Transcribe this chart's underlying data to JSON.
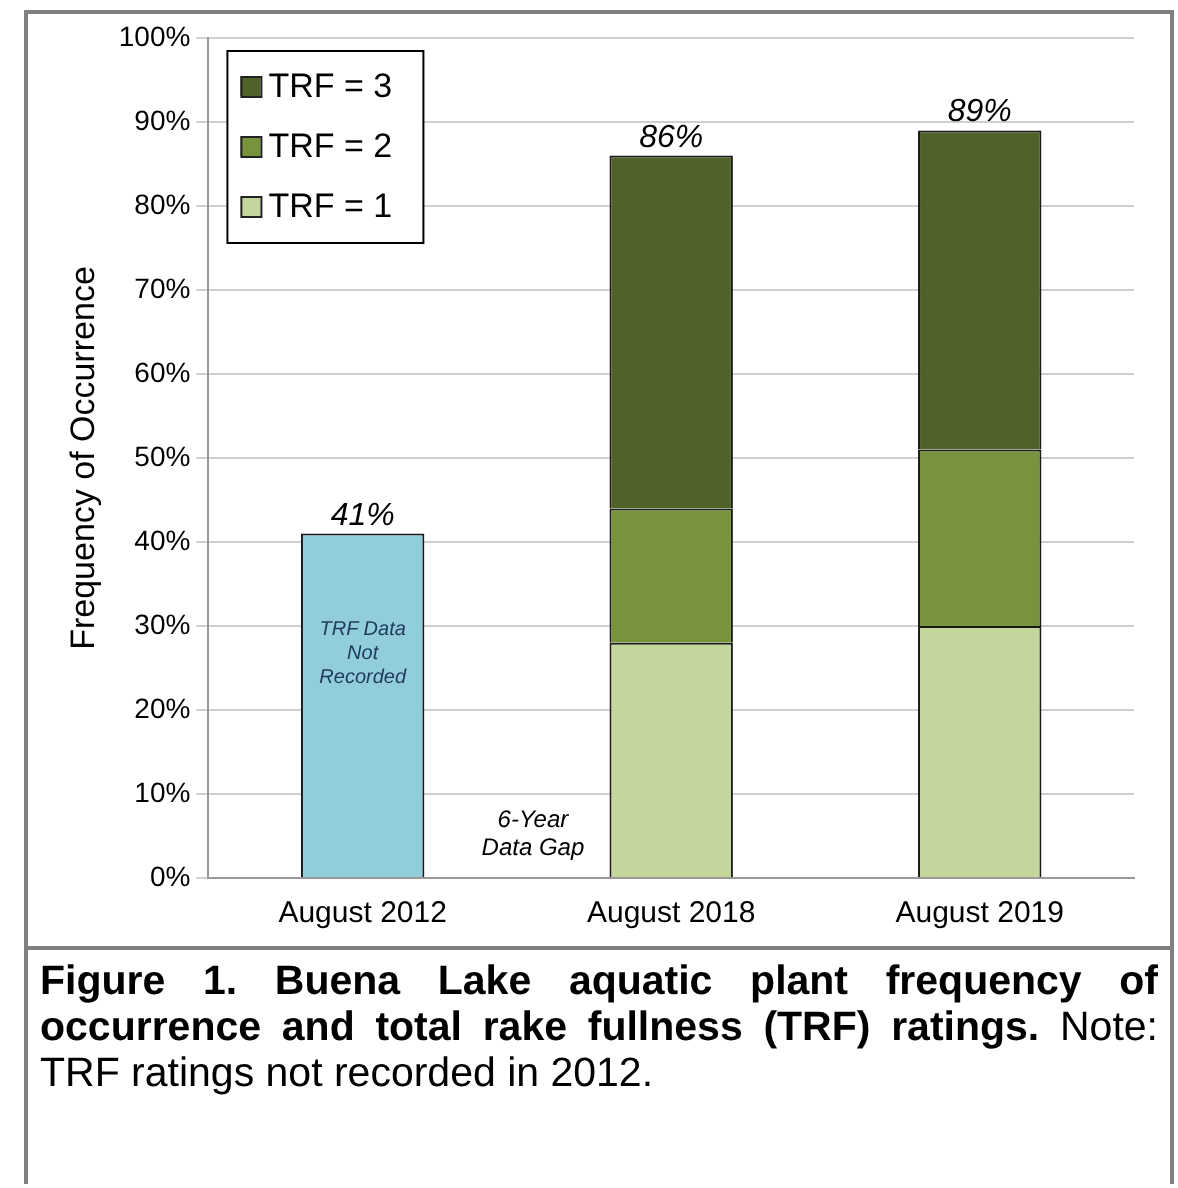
{
  "chart_data": {
    "type": "bar",
    "stacked": true,
    "title": "Figure 1. Buena Lake aquatic plant frequency of occurrence and total rake fullness (TRF) ratings.",
    "ylabel": "Frequency of Occurrence",
    "categories": [
      "August 2012",
      "August 2018",
      "August 2019"
    ],
    "series": [
      {
        "color": "#92cddc",
        "values": [
          41,
          null,
          null
        ]
      },
      {
        "name": "TRF = 1",
        "color": "#c3d69b",
        "values": [
          null,
          28,
          30
        ]
      },
      {
        "name": "TRF = 2",
        "color": "#77933c",
        "values": [
          null,
          16,
          21
        ]
      },
      {
        "name": "TRF = 3",
        "color": "#4f6228",
        "values": [
          null,
          42,
          38
        ]
      }
    ],
    "totals": [
      "41%",
      "86%",
      "89%"
    ],
    "ylim": [
      0,
      100
    ],
    "yticks": [
      {
        "value": 0,
        "label": "0%"
      },
      {
        "value": 10,
        "label": "10%"
      },
      {
        "value": 20,
        "label": "20%"
      },
      {
        "value": 30,
        "label": "30%"
      },
      {
        "value": 40,
        "label": "40%"
      },
      {
        "value": 50,
        "label": "50%"
      },
      {
        "value": 60,
        "label": "60%"
      },
      {
        "value": 70,
        "label": "70%"
      },
      {
        "value": 80,
        "label": "80%"
      },
      {
        "value": 90,
        "label": "90%"
      },
      {
        "value": 100,
        "label": "100%"
      }
    ],
    "grid": "y",
    "legend": "top left",
    "annotations": [
      "TRF Data Not Recorded",
      "6-Year Data Gap",
      "Note: TRF ratings not recorded in 2012."
    ]
  }
}
